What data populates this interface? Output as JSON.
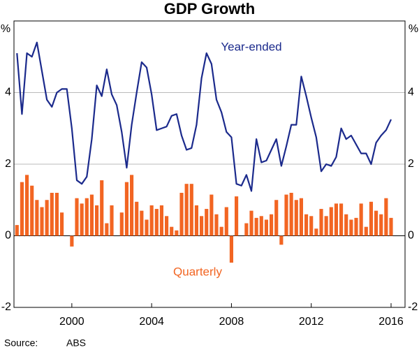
{
  "chart_data": {
    "type": "bar-line",
    "title": "GDP Growth",
    "y_unit": "%",
    "source_label": "Source:",
    "source": "ABS",
    "x": [
      1997.75,
      1998,
      1998.25,
      1998.5,
      1998.75,
      1999,
      1999.25,
      1999.5,
      1999.75,
      2000,
      2000.25,
      2000.5,
      2000.75,
      2001,
      2001.25,
      2001.5,
      2001.75,
      2002,
      2002.25,
      2002.5,
      2002.75,
      2003,
      2003.25,
      2003.5,
      2003.75,
      2004,
      2004.25,
      2004.5,
      2004.75,
      2005,
      2005.25,
      2005.5,
      2005.75,
      2006,
      2006.25,
      2006.5,
      2006.75,
      2007,
      2007.25,
      2007.5,
      2007.75,
      2008,
      2008.25,
      2008.5,
      2008.75,
      2009,
      2009.25,
      2009.5,
      2009.75,
      2010,
      2010.25,
      2010.5,
      2010.75,
      2011,
      2011.25,
      2011.5,
      2011.75,
      2012,
      2012.25,
      2012.5,
      2012.75,
      2013,
      2013.25,
      2013.5,
      2013.75,
      2014,
      2014.25,
      2014.5,
      2014.75,
      2015,
      2015.25,
      2015.5,
      2015.75,
      2016,
      2016.25,
      2016.5
    ],
    "series": [
      {
        "name": "Quarterly",
        "kind": "bar",
        "color": "#f26522",
        "values": [
          0.3,
          1.5,
          1.7,
          1.4,
          1.0,
          0.8,
          1.0,
          1.2,
          1.2,
          0.65,
          0.0,
          -0.3,
          1.05,
          0.9,
          1.05,
          1.15,
          0.85,
          1.55,
          0.35,
          0.85,
          0.0,
          0.65,
          1.5,
          1.7,
          0.95,
          0.7,
          0.45,
          0.85,
          0.75,
          0.85,
          0.55,
          0.25,
          0.15,
          1.2,
          1.45,
          1.45,
          0.85,
          0.55,
          0.75,
          1.15,
          0.6,
          0.25,
          0.8,
          -0.75,
          1.1,
          0.0,
          0.35,
          0.7,
          0.5,
          0.55,
          0.45,
          0.6,
          1.0,
          -0.25,
          1.15,
          1.2,
          1.0,
          1.05,
          0.6,
          0.55,
          0.2,
          0.75,
          0.55,
          0.8,
          0.9,
          0.9,
          0.6,
          0.45,
          0.5,
          0.9,
          0.25,
          0.95,
          0.7,
          0.6,
          1.05,
          0.5
        ]
      },
      {
        "name": "Year-ended",
        "kind": "line",
        "color": "#1b2a8c",
        "values": [
          5.1,
          3.4,
          5.1,
          5.0,
          5.4,
          4.6,
          3.8,
          3.6,
          4.0,
          4.1,
          4.1,
          3.0,
          1.55,
          1.45,
          1.65,
          2.7,
          4.2,
          3.9,
          4.65,
          3.95,
          3.65,
          2.9,
          1.9,
          3.1,
          4.0,
          4.85,
          4.7,
          3.95,
          2.95,
          3.0,
          3.05,
          3.35,
          3.4,
          2.8,
          2.4,
          2.45,
          3.1,
          4.4,
          5.1,
          4.8,
          3.8,
          3.45,
          2.9,
          2.75,
          1.45,
          1.4,
          1.7,
          1.25,
          2.7,
          2.05,
          2.1,
          2.4,
          2.7,
          1.95,
          2.5,
          3.1,
          3.1,
          4.45,
          3.9,
          3.3,
          2.75,
          1.8,
          2.0,
          1.95,
          2.2,
          3.0,
          2.7,
          2.8,
          2.55,
          2.3,
          2.3,
          2.0,
          2.6,
          2.8,
          2.95,
          3.25
        ]
      }
    ],
    "xlim": [
      1997.6,
      2017.2
    ],
    "xticks": [
      {
        "value": 2000.5,
        "label": "2000"
      },
      {
        "value": 2004.5,
        "label": "2004"
      },
      {
        "value": 2008.5,
        "label": "2008"
      },
      {
        "value": 2012.5,
        "label": "2012"
      },
      {
        "value": 2016.5,
        "label": "2016"
      }
    ],
    "ylim": [
      -2,
      6
    ],
    "yticks": [
      -2,
      0,
      2,
      4
    ],
    "grid": true
  }
}
